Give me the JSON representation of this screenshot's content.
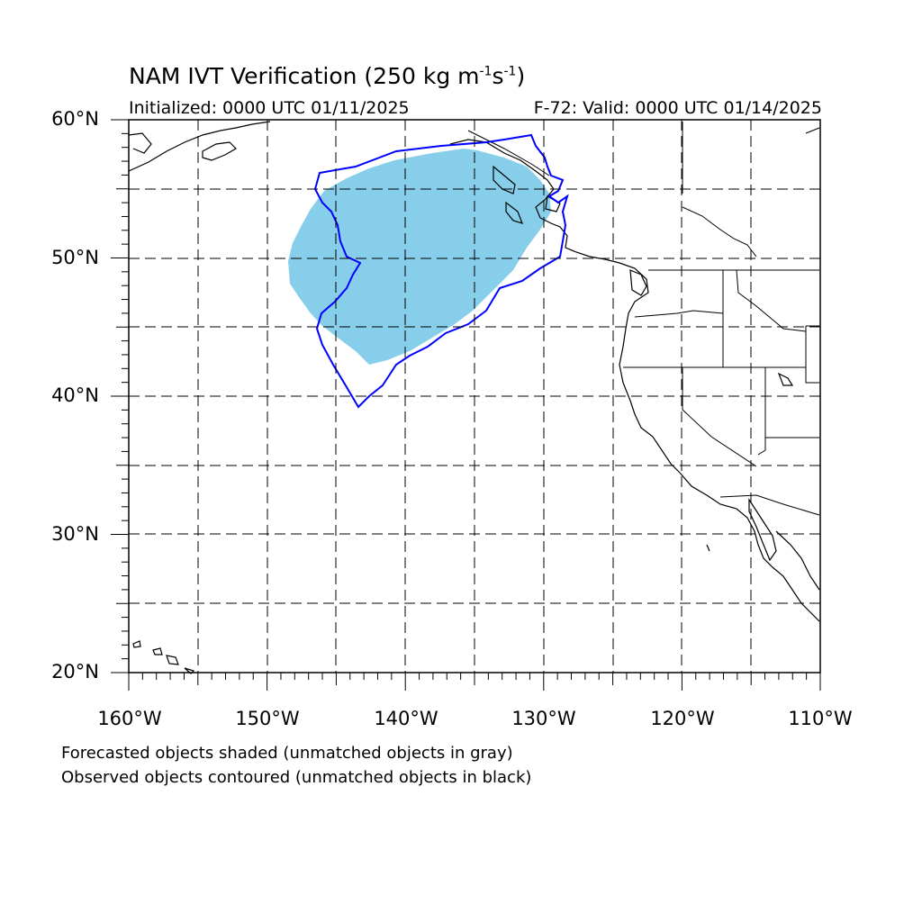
{
  "title": {
    "main": "NAM IVT Verification (250 kg m",
    "exp1": "-1",
    "mid": "s",
    "exp2": "-1",
    "close": ")"
  },
  "init_text": "Initialized: 0000 UTC 01/11/2025",
  "valid_text": "F-72: Valid: 0000 UTC 01/14/2025",
  "lat_labels": [
    "60°N",
    "50°N",
    "40°N",
    "30°N",
    "20°N"
  ],
  "lon_labels": [
    "160°W",
    "150°W",
    "140°W",
    "130°W",
    "120°W",
    "110°W"
  ],
  "captions": [
    "Forecasted objects shaded (unmatched objects in gray)",
    "Observed objects contoured (unmatched objects in black)"
  ],
  "colors": {
    "forecast_fill": "#87ceeb",
    "observed_contour": "#0000ff",
    "coast": "#000000",
    "grid": "#000000"
  },
  "map_extent": {
    "lon_min": -160,
    "lon_max": -110,
    "lat_min": 20,
    "lat_max": 60
  },
  "grid_spacing_deg": 5
}
